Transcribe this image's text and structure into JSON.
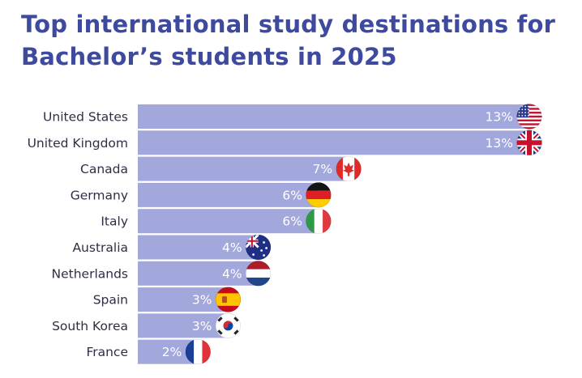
{
  "title_lines": [
    "Top international study destinations for",
    "Bachelor’s students in 2025"
  ],
  "colors": {
    "title": "#3d4a9e",
    "bar": "#a2a8dc",
    "label": "#2d2f45",
    "value_text": "#ffffff"
  },
  "chart_data": {
    "type": "bar",
    "orientation": "horizontal",
    "title": "Top international study destinations for Bachelor’s students in 2025",
    "categories": [
      "United States",
      "United Kingdom",
      "Canada",
      "Germany",
      "Italy",
      "Australia",
      "Netherlands",
      "Spain",
      "South Korea",
      "France"
    ],
    "values": [
      13,
      13,
      7,
      6,
      6,
      4,
      4,
      3,
      3,
      2
    ],
    "value_labels": [
      "13%",
      "13%",
      "7%",
      "6%",
      "6%",
      "4%",
      "4%",
      "3%",
      "3%",
      "2%"
    ],
    "flag_icons": [
      "us-flag-icon",
      "uk-flag-icon",
      "canada-flag-icon",
      "germany-flag-icon",
      "italy-flag-icon",
      "australia-flag-icon",
      "netherlands-flag-icon",
      "spain-flag-icon",
      "south-korea-flag-icon",
      "france-flag-icon"
    ],
    "xlabel": "",
    "ylabel": "",
    "xlim": [
      0,
      13
    ],
    "grid": false,
    "legend": "none"
  }
}
